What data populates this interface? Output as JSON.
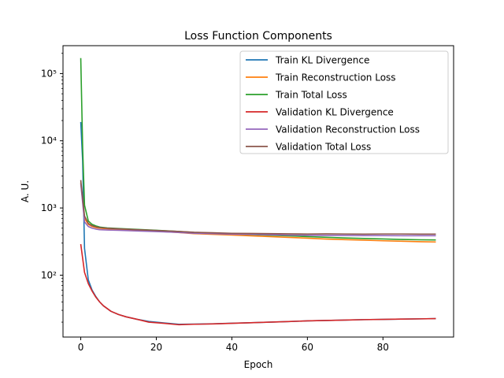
{
  "chart_data": {
    "type": "line",
    "title": "Loss Function Components",
    "xlabel": "Epoch",
    "ylabel": "A. U.",
    "yscale": "log",
    "xlim": [
      -4.7,
      98.7
    ],
    "ylim": [
      12,
      260000
    ],
    "x_ticks": [
      0,
      20,
      40,
      60,
      80
    ],
    "x_tick_labels": [
      "0",
      "20",
      "40",
      "60",
      "80"
    ],
    "y_ticks": [
      100,
      1000,
      10000,
      100000
    ],
    "y_tick_labels": [
      "10²",
      "10³",
      "10⁴",
      "10⁵"
    ],
    "legend_position": "top-right",
    "grid": false,
    "series": [
      {
        "name": "Train KL Divergence",
        "color": "#1f77b4",
        "points": [
          [
            0,
            19000
          ],
          [
            0.5,
            5000
          ],
          [
            1,
            250
          ],
          [
            2,
            85
          ],
          [
            3,
            60
          ],
          [
            4,
            48
          ],
          [
            5,
            40
          ],
          [
            6,
            35
          ],
          [
            8,
            29
          ],
          [
            10,
            26
          ],
          [
            12,
            24
          ],
          [
            15,
            22
          ],
          [
            18,
            20.5
          ],
          [
            22,
            19.5
          ],
          [
            26,
            18.6
          ],
          [
            30,
            18.7
          ],
          [
            35,
            18.9
          ],
          [
            40,
            19.3
          ],
          [
            45,
            19.6
          ],
          [
            50,
            20
          ],
          [
            55,
            20.4
          ],
          [
            60,
            20.9
          ],
          [
            65,
            21.2
          ],
          [
            70,
            21.5
          ],
          [
            75,
            21.8
          ],
          [
            80,
            22
          ],
          [
            85,
            22.2
          ],
          [
            90,
            22.4
          ],
          [
            94,
            22.6
          ]
        ]
      },
      {
        "name": "Train Reconstruction Loss",
        "color": "#ff7f0e",
        "points": [
          [
            0,
            2400
          ],
          [
            1,
            700
          ],
          [
            2,
            570
          ],
          [
            3,
            530
          ],
          [
            4,
            510
          ],
          [
            5,
            500
          ],
          [
            7,
            490
          ],
          [
            10,
            480
          ],
          [
            15,
            465
          ],
          [
            20,
            450
          ],
          [
            25,
            435
          ],
          [
            30,
            415
          ],
          [
            35,
            405
          ],
          [
            40,
            395
          ],
          [
            45,
            385
          ],
          [
            50,
            375
          ],
          [
            55,
            365
          ],
          [
            60,
            355
          ],
          [
            65,
            345
          ],
          [
            70,
            338
          ],
          [
            75,
            332
          ],
          [
            80,
            325
          ],
          [
            85,
            320
          ],
          [
            90,
            315
          ],
          [
            94,
            312
          ]
        ]
      },
      {
        "name": "Train Total Loss",
        "color": "#2ca02c",
        "points": [
          [
            0,
            170000
          ],
          [
            0.5,
            8000
          ],
          [
            1,
            1100
          ],
          [
            2,
            640
          ],
          [
            3,
            570
          ],
          [
            4,
            540
          ],
          [
            5,
            520
          ],
          [
            7,
            505
          ],
          [
            10,
            495
          ],
          [
            15,
            480
          ],
          [
            20,
            465
          ],
          [
            25,
            450
          ],
          [
            30,
            432
          ],
          [
            35,
            422
          ],
          [
            40,
            412
          ],
          [
            45,
            402
          ],
          [
            50,
            393
          ],
          [
            55,
            385
          ],
          [
            60,
            375
          ],
          [
            65,
            366
          ],
          [
            70,
            358
          ],
          [
            75,
            352
          ],
          [
            80,
            346
          ],
          [
            85,
            340
          ],
          [
            90,
            336
          ],
          [
            94,
            334
          ]
        ]
      },
      {
        "name": "Validation KL Divergence",
        "color": "#d62728",
        "points": [
          [
            0,
            290
          ],
          [
            1,
            110
          ],
          [
            2,
            75
          ],
          [
            3,
            58
          ],
          [
            4,
            47
          ],
          [
            5,
            40
          ],
          [
            6,
            35
          ],
          [
            8,
            29
          ],
          [
            10,
            26
          ],
          [
            12,
            24
          ],
          [
            15,
            22
          ],
          [
            18,
            20
          ],
          [
            22,
            19.2
          ],
          [
            26,
            18.3
          ],
          [
            30,
            18.6
          ],
          [
            35,
            18.8
          ],
          [
            40,
            19.2
          ],
          [
            45,
            19.6
          ],
          [
            50,
            20
          ],
          [
            55,
            20.4
          ],
          [
            60,
            20.9
          ],
          [
            65,
            21.2
          ],
          [
            70,
            21.5
          ],
          [
            75,
            21.8
          ],
          [
            80,
            22
          ],
          [
            85,
            22.2
          ],
          [
            90,
            22.4
          ],
          [
            94,
            22.6
          ]
        ]
      },
      {
        "name": "Validation Reconstruction Loss",
        "color": "#9467bd",
        "points": [
          [
            0,
            2300
          ],
          [
            1,
            620
          ],
          [
            2,
            530
          ],
          [
            3,
            500
          ],
          [
            4,
            485
          ],
          [
            5,
            475
          ],
          [
            7,
            470
          ],
          [
            10,
            465
          ],
          [
            15,
            455
          ],
          [
            20,
            445
          ],
          [
            25,
            435
          ],
          [
            30,
            420
          ],
          [
            35,
            415
          ],
          [
            40,
            408
          ],
          [
            45,
            405
          ],
          [
            50,
            400
          ],
          [
            55,
            395
          ],
          [
            60,
            393
          ],
          [
            65,
            390
          ],
          [
            70,
            390
          ],
          [
            75,
            388
          ],
          [
            80,
            388
          ],
          [
            85,
            387
          ],
          [
            90,
            387
          ],
          [
            94,
            386
          ]
        ]
      },
      {
        "name": "Validation Total Loss",
        "color": "#8c564b",
        "points": [
          [
            0,
            2600
          ],
          [
            1,
            760
          ],
          [
            2,
            590
          ],
          [
            3,
            545
          ],
          [
            4,
            525
          ],
          [
            5,
            510
          ],
          [
            7,
            500
          ],
          [
            10,
            490
          ],
          [
            15,
            475
          ],
          [
            20,
            462
          ],
          [
            25,
            450
          ],
          [
            30,
            435
          ],
          [
            35,
            428
          ],
          [
            40,
            420
          ],
          [
            45,
            418
          ],
          [
            50,
            415
          ],
          [
            55,
            412
          ],
          [
            60,
            410
          ],
          [
            65,
            412
          ],
          [
            70,
            410
          ],
          [
            75,
            408
          ],
          [
            80,
            410
          ],
          [
            85,
            410
          ],
          [
            90,
            408
          ],
          [
            94,
            408
          ]
        ]
      }
    ]
  }
}
